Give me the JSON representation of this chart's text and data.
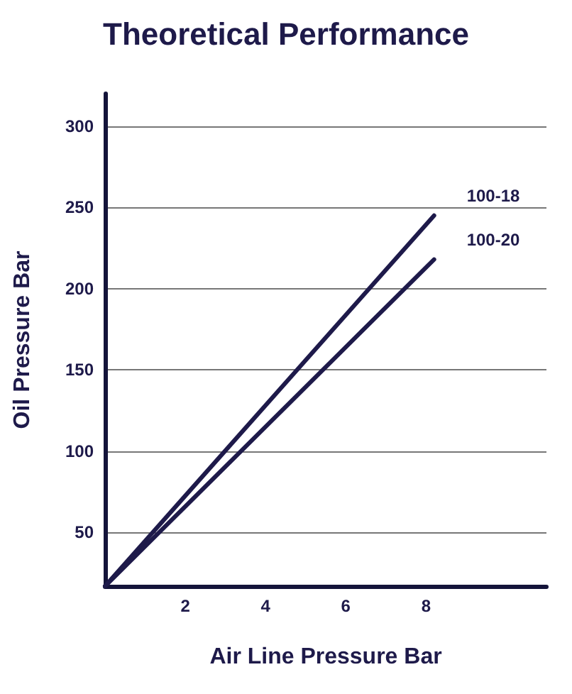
{
  "chart_data": {
    "type": "line",
    "title": "Theoretical Performance",
    "xlabel": "Air Line Pressure Bar",
    "ylabel": "Oil Pressure Bar",
    "xlim": [
      0,
      11
    ],
    "xticks": [
      2,
      4,
      6,
      8
    ],
    "ylim": [
      17,
      320
    ],
    "yticks": [
      50,
      100,
      150,
      200,
      250,
      300
    ],
    "grid": "y",
    "marker": "none",
    "line_style": "solid",
    "legend": false,
    "x": [
      0,
      8.2
    ],
    "series": [
      {
        "name": "100-18",
        "color": "#1e1a4a",
        "values": [
          17,
          245
        ]
      },
      {
        "name": "100-20",
        "color": "#1e1a4a",
        "values": [
          17,
          218
        ]
      }
    ]
  }
}
